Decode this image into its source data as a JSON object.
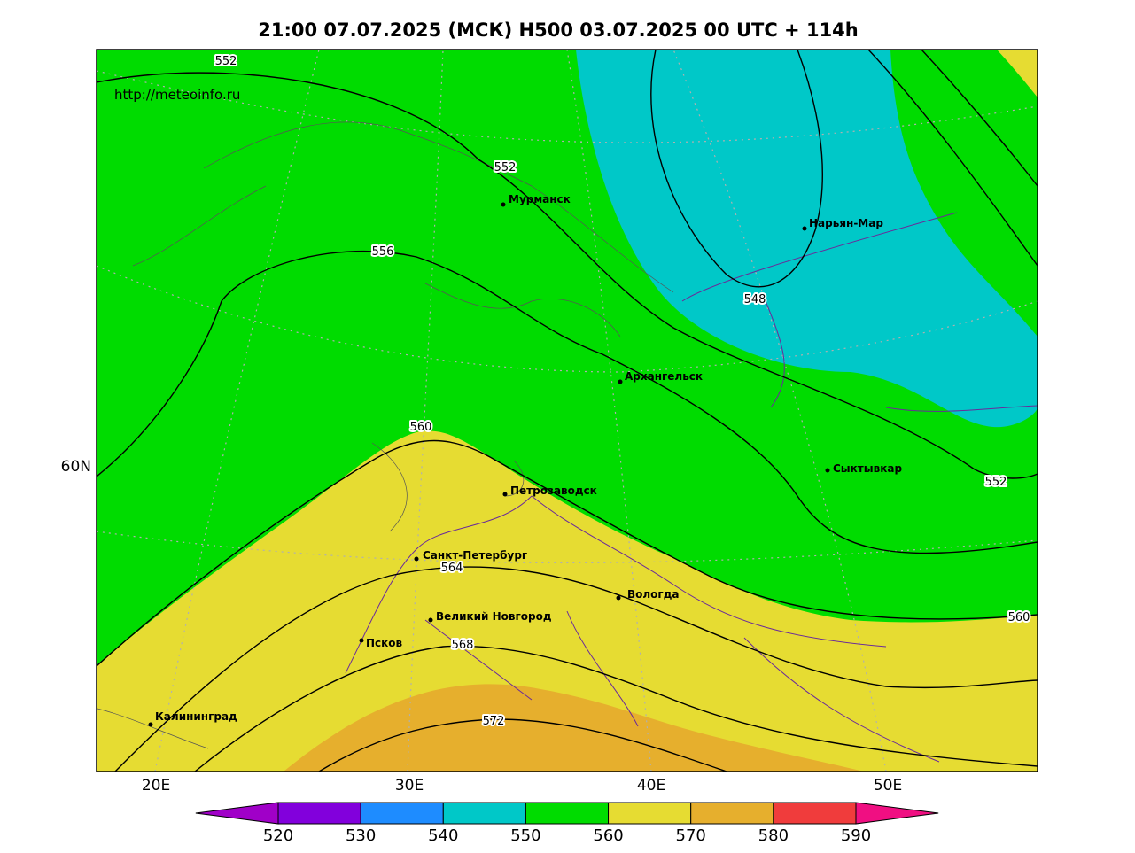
{
  "title": "21:00 07.07.2025 (МСК) H500  03.07.2025 00 UTC + 114h",
  "url": "http://meteoinfo.ru",
  "lon_labels": [
    "20E",
    "30E",
    "40E",
    "50E"
  ],
  "lat_labels": [
    "60N"
  ],
  "cities": [
    "Мурманск",
    "Нарьян-Мар",
    "Архангельск",
    "Сыктывкар",
    "Петрозаводск",
    "Санкт-Петербург",
    "Вологда",
    "Великий Новгород",
    "Псков",
    "Калининград"
  ],
  "contour_labels": [
    "552",
    "552",
    "556",
    "548",
    "560",
    "552",
    "564",
    "560",
    "568",
    "572"
  ],
  "colorbar": {
    "labels": [
      520,
      530,
      540,
      550,
      560,
      570,
      580,
      590
    ],
    "colors": [
      "#a000c8",
      "#8200dc",
      "#1e8cff",
      "#00c8c8",
      "#00dc00",
      "#e6dc32",
      "#e6af2d",
      "#f03c3c",
      "#f00f82"
    ]
  }
}
